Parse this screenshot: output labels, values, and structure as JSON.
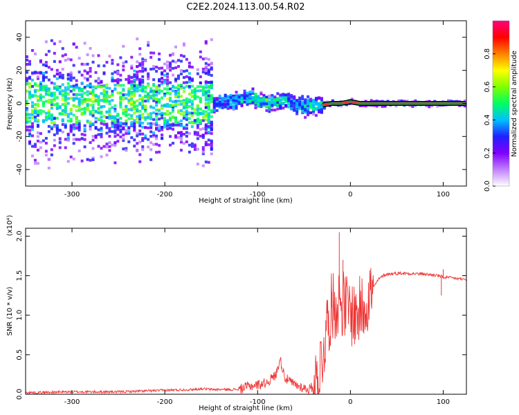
{
  "title": "C2E2.2024.113.00.54.R02",
  "chart_data": [
    {
      "type": "heatmap",
      "xlabel": "Height of straight line (km)",
      "ylabel": "Frequency (Hz)",
      "xlim": [
        -350,
        125
      ],
      "ylim": [
        -50,
        50
      ],
      "x_ticks": [
        -300,
        -200,
        -100,
        0,
        100
      ],
      "y_ticks": [
        -40,
        -20,
        0,
        20,
        40
      ],
      "colorbar": {
        "label": "Normalized spectral amplitude",
        "range": [
          0,
          1
        ],
        "ticks": [
          "0.0",
          "0.2",
          "0.4",
          "0.6",
          "0.8"
        ],
        "colormap": [
          "#ffffff",
          "#c080ff",
          "#8000ff",
          "#2020ff",
          "#00c0ff",
          "#00ff60",
          "#80ff00",
          "#ffff00",
          "#ff8000",
          "#ff0000",
          "#ff0080"
        ]
      },
      "ridge": {
        "x": [
          -230,
          -200,
          -170,
          -150,
          -140,
          -120,
          -110,
          -100,
          -90,
          -80,
          -70,
          -60,
          -50,
          -40,
          -30,
          -20,
          -10,
          0,
          10,
          50,
          100,
          125
        ],
        "frequency": [
          0,
          1,
          0,
          -1,
          1,
          2,
          4,
          2,
          0,
          1,
          2,
          -1,
          -2,
          -1,
          -1,
          0,
          0,
          1,
          0,
          0,
          0,
          0
        ],
        "amplitude": [
          0.25,
          0.3,
          0.25,
          0.3,
          0.4,
          0.45,
          0.5,
          0.45,
          0.55,
          0.5,
          0.45,
          0.4,
          0.45,
          0.5,
          0.45,
          0.8,
          0.9,
          0.85,
          0.8,
          0.8,
          0.8,
          0.8
        ]
      }
    },
    {
      "type": "line",
      "xlabel": "Height of straight line (km)",
      "ylabel": "SNR (10 * v/v)",
      "y_multiplier": "(x10⁴)",
      "xlim": [
        -350,
        125
      ],
      "ylim": [
        0,
        2.1
      ],
      "x_ticks": [
        -300,
        -200,
        -100,
        0,
        100
      ],
      "y_ticks": [
        "0.0",
        "0.5",
        "1.0",
        "1.5",
        "2.0"
      ],
      "color": "#ee3333",
      "series": [
        {
          "x": [
            -350,
            -300,
            -250,
            -200,
            -170,
            -160,
            -150,
            -120,
            -110,
            -100,
            -90,
            -80,
            -76,
            -70,
            -60,
            -50,
            -45,
            -40,
            -35,
            -30,
            -25,
            -20,
            -15,
            -12,
            -10,
            -8,
            -5,
            0,
            5,
            10,
            15,
            20,
            25,
            30,
            35,
            40,
            50,
            60,
            80,
            95,
            100,
            110,
            125
          ],
          "values": [
            0.02,
            0.03,
            0.03,
            0.05,
            0.06,
            0.07,
            0.06,
            0.06,
            0.1,
            0.12,
            0.15,
            0.25,
            0.45,
            0.2,
            0.12,
            0.08,
            0.06,
            0.1,
            0.2,
            0.5,
            0.9,
            1.1,
            1.15,
            1.2,
            1.2,
            1.15,
            1.1,
            1.05,
            1.0,
            1.05,
            1.15,
            1.25,
            1.35,
            1.45,
            1.5,
            1.52,
            1.53,
            1.53,
            1.52,
            1.5,
            1.48,
            1.47,
            1.45
          ]
        }
      ],
      "spikes": [
        {
          "x": -12,
          "value": 2.05
        },
        {
          "x": -8,
          "value": 1.7
        },
        {
          "x": -20,
          "value": 1.3
        },
        {
          "x": 100,
          "value": 1.58
        },
        {
          "x": 98,
          "value": 1.25
        }
      ]
    }
  ]
}
